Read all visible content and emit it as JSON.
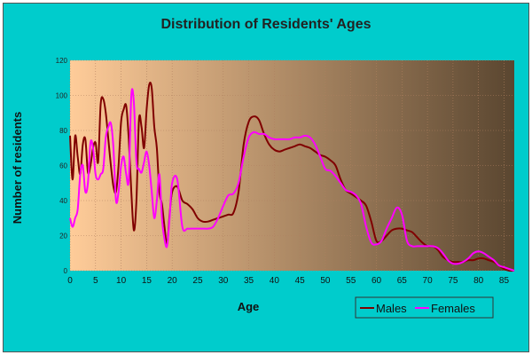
{
  "chart_data": {
    "type": "line",
    "title": "Distribution of Residents' Ages",
    "xlabel": "Age",
    "ylabel": "Number of residents",
    "xlim": [
      0,
      87
    ],
    "ylim": [
      0,
      120
    ],
    "x_ticks": [
      "0",
      "5",
      "10",
      "15",
      "20",
      "25",
      "30",
      "35",
      "40",
      "45",
      "50",
      "55",
      "60",
      "65",
      "70",
      "75",
      "80",
      "85"
    ],
    "y_ticks": [
      "0",
      "20",
      "40",
      "60",
      "80",
      "100",
      "120"
    ],
    "grid": true,
    "legend_position": "bottom-right",
    "background": "gradient peach to dark brown",
    "colors": {
      "males": "#800000",
      "females": "#ff00ff",
      "plot_left": "#ffcc99",
      "plot_right": "#5a4630",
      "outer_bg": "#00cccc"
    },
    "series": [
      {
        "name": "Males",
        "color": "#800000",
        "x": [
          0,
          0.5,
          1,
          1.5,
          2,
          2.5,
          3,
          3.5,
          4,
          4.5,
          5,
          5.5,
          6,
          6.5,
          7,
          7.5,
          8,
          8.5,
          9,
          9.5,
          10,
          10.5,
          11,
          11.5,
          12,
          12.5,
          13,
          13.5,
          14,
          14.5,
          15,
          15.5,
          16,
          16.5,
          17,
          17.5,
          18,
          18.5,
          19,
          19.5,
          20,
          21,
          22,
          23,
          24,
          25,
          26,
          27,
          28,
          29,
          30,
          31,
          32,
          33,
          34,
          35,
          36,
          37,
          38,
          39,
          40,
          41,
          42,
          43,
          44,
          45,
          46,
          47,
          48,
          49,
          50,
          51,
          52,
          53,
          54,
          55,
          56,
          57,
          58,
          59,
          60,
          61,
          62,
          63,
          64,
          65,
          66,
          67,
          68,
          69,
          70,
          71,
          72,
          73,
          74,
          75,
          76,
          77,
          78,
          79,
          80,
          81,
          82,
          83,
          84,
          85,
          86,
          87
        ],
        "values": [
          77,
          52,
          77,
          65,
          55,
          72,
          75,
          56,
          60,
          70,
          73,
          62,
          95,
          98,
          90,
          75,
          60,
          48,
          45,
          60,
          85,
          92,
          94,
          75,
          45,
          23,
          40,
          86,
          82,
          70,
          92,
          106,
          104,
          82,
          70,
          45,
          38,
          25,
          15,
          32,
          45,
          48,
          40,
          38,
          35,
          30,
          28,
          28,
          29,
          30,
          31,
          32,
          33,
          45,
          72,
          85,
          88,
          86,
          78,
          72,
          69,
          68,
          69,
          70,
          71,
          72,
          71,
          70,
          68,
          66,
          65,
          63,
          60,
          52,
          46,
          44,
          42,
          40,
          37,
          28,
          17,
          17,
          20,
          23,
          24,
          24,
          23,
          22,
          19,
          16,
          14,
          14,
          12,
          8,
          6,
          5,
          5,
          5,
          6,
          6,
          7,
          7,
          6,
          5,
          3,
          1,
          0,
          0
        ]
      },
      {
        "name": "Females",
        "color": "#ff00ff",
        "x": [
          0,
          0.5,
          1,
          1.5,
          2,
          2.5,
          3,
          3.5,
          4,
          4.5,
          5,
          5.5,
          6,
          6.5,
          7,
          7.5,
          8,
          8.5,
          9,
          9.5,
          10,
          10.5,
          11,
          11.5,
          12,
          12.5,
          13,
          13.5,
          14,
          14.5,
          15,
          15.5,
          16,
          16.5,
          17,
          17.5,
          18,
          18.5,
          19,
          19.5,
          20,
          21,
          22,
          23,
          24,
          25,
          26,
          27,
          28,
          29,
          30,
          31,
          32,
          33,
          34,
          35,
          36,
          37,
          38,
          39,
          40,
          41,
          42,
          43,
          44,
          45,
          46,
          47,
          48,
          49,
          50,
          51,
          52,
          53,
          54,
          55,
          56,
          57,
          58,
          59,
          60,
          61,
          62,
          63,
          64,
          65,
          66,
          67,
          68,
          69,
          70,
          71,
          72,
          73,
          74,
          75,
          76,
          77,
          78,
          79,
          80,
          81,
          82,
          83,
          84,
          85,
          86,
          87
        ],
        "values": [
          30,
          25,
          30,
          35,
          55,
          60,
          45,
          50,
          73,
          70,
          55,
          52,
          55,
          58,
          76,
          82,
          84,
          70,
          40,
          45,
          60,
          65,
          55,
          52,
          100,
          96,
          62,
          58,
          56,
          62,
          68,
          60,
          45,
          30,
          40,
          55,
          30,
          18,
          14,
          30,
          50,
          52,
          25,
          24,
          24,
          24,
          24,
          24,
          25,
          30,
          37,
          43,
          44,
          50,
          65,
          76,
          79,
          78,
          78,
          76,
          75,
          75,
          75,
          75,
          76,
          76,
          77,
          76,
          72,
          65,
          58,
          57,
          54,
          50,
          46,
          45,
          43,
          38,
          25,
          16,
          15,
          17,
          24,
          30,
          36,
          32,
          17,
          14,
          14,
          14,
          14,
          14,
          13,
          10,
          6,
          4,
          4,
          5,
          7,
          10,
          11,
          10,
          8,
          6,
          3,
          2,
          1,
          0
        ]
      }
    ]
  }
}
